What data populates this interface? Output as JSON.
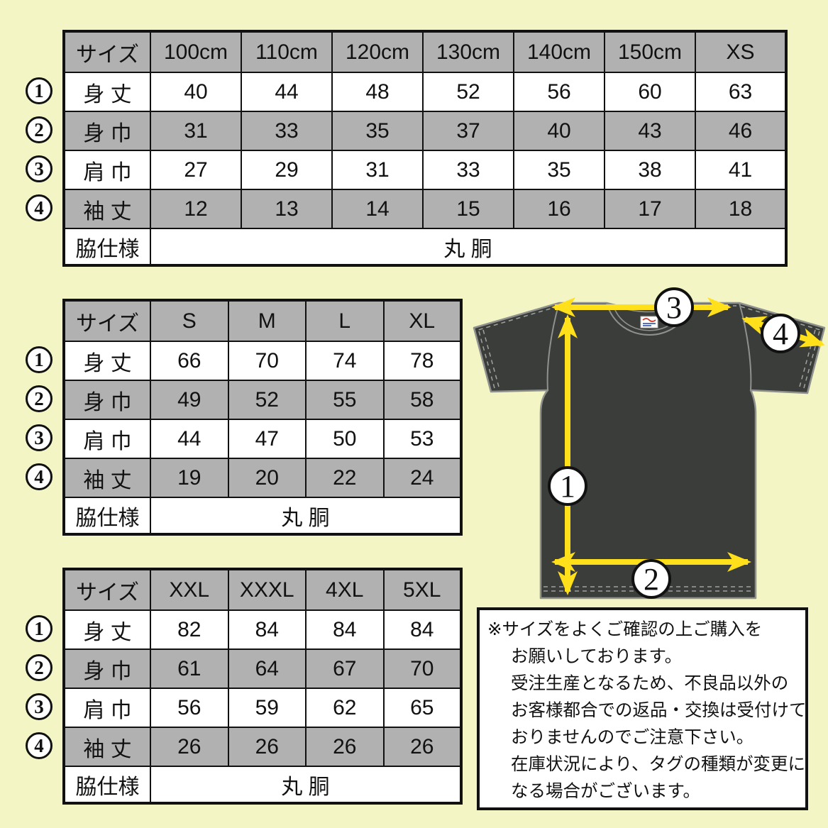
{
  "colors": {
    "background": "#F3F5C4",
    "cell_gray": "#B1B1B1",
    "border": "#111111",
    "shirt": "#3B3D3A",
    "arrow_yellow": "#FFE01A"
  },
  "tables": [
    {
      "name": "kids-xs",
      "header": [
        "サイズ",
        "100cm",
        "110cm",
        "120cm",
        "130cm",
        "140cm",
        "150cm",
        "XS"
      ],
      "rows": [
        {
          "marker": "1",
          "label": "身 丈",
          "values": [
            "40",
            "44",
            "48",
            "52",
            "56",
            "60",
            "63"
          ]
        },
        {
          "marker": "2",
          "label": "身 巾",
          "values": [
            "31",
            "33",
            "35",
            "37",
            "40",
            "43",
            "46"
          ]
        },
        {
          "marker": "3",
          "label": "肩 巾",
          "values": [
            "27",
            "29",
            "31",
            "33",
            "35",
            "38",
            "41"
          ]
        },
        {
          "marker": "4",
          "label": "袖 丈",
          "values": [
            "12",
            "13",
            "14",
            "15",
            "16",
            "17",
            "18"
          ]
        }
      ],
      "footer": {
        "label": "脇仕様",
        "value": "丸 胴"
      }
    },
    {
      "name": "s-xl",
      "header": [
        "サイズ",
        "S",
        "M",
        "L",
        "XL"
      ],
      "rows": [
        {
          "marker": "1",
          "label": "身 丈",
          "values": [
            "66",
            "70",
            "74",
            "78"
          ]
        },
        {
          "marker": "2",
          "label": "身 巾",
          "values": [
            "49",
            "52",
            "55",
            "58"
          ]
        },
        {
          "marker": "3",
          "label": "肩 巾",
          "values": [
            "44",
            "47",
            "50",
            "53"
          ]
        },
        {
          "marker": "4",
          "label": "袖 丈",
          "values": [
            "19",
            "20",
            "22",
            "24"
          ]
        }
      ],
      "footer": {
        "label": "脇仕様",
        "value": "丸 胴"
      }
    },
    {
      "name": "xxl-5xl",
      "header": [
        "サイズ",
        "XXL",
        "XXXL",
        "4XL",
        "5XL"
      ],
      "rows": [
        {
          "marker": "1",
          "label": "身 丈",
          "values": [
            "82",
            "84",
            "84",
            "84"
          ]
        },
        {
          "marker": "2",
          "label": "身 巾",
          "values": [
            "61",
            "64",
            "67",
            "70"
          ]
        },
        {
          "marker": "3",
          "label": "肩 巾",
          "values": [
            "56",
            "59",
            "62",
            "65"
          ]
        },
        {
          "marker": "4",
          "label": "袖 丈",
          "values": [
            "26",
            "26",
            "26",
            "26"
          ]
        }
      ],
      "footer": {
        "label": "脇仕様",
        "value": "丸 胴"
      }
    }
  ],
  "diagram": {
    "badge_numbers": [
      "1",
      "2",
      "3",
      "4"
    ]
  },
  "notice": {
    "lines": [
      "※サイズをよくご確認の上ご購入を",
      "お願いしております。",
      "受注生産となるため、不良品以外の",
      "お客様都合での返品・交換は受付けて",
      "おりませんのでご注意下さい。",
      "在庫状況により、タグの種類が変更に",
      "なる場合がございます。"
    ]
  }
}
